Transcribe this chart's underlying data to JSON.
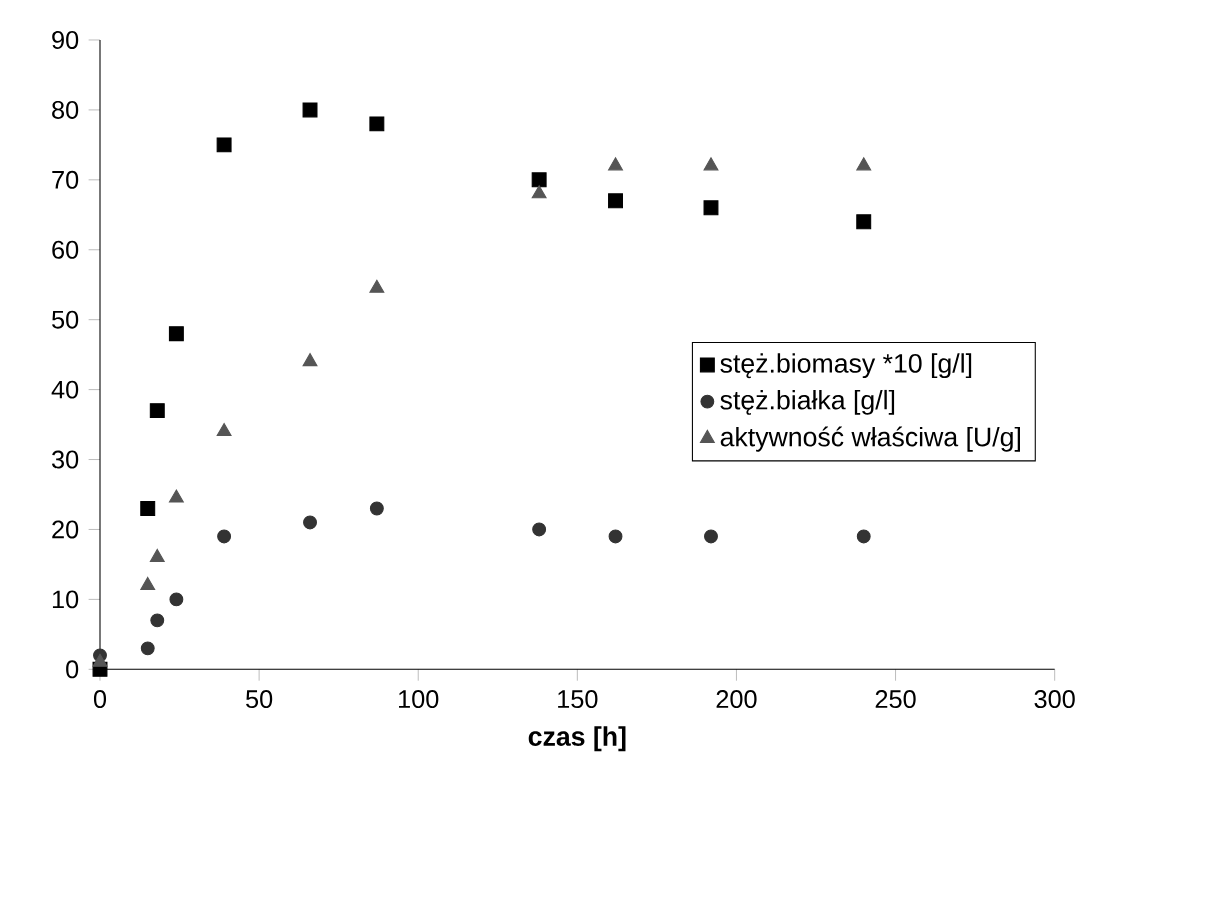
{
  "chart_data": {
    "type": "scatter",
    "xlabel": "czas [h]",
    "xlim": [
      0,
      300
    ],
    "xticks": [
      0,
      50,
      100,
      150,
      200,
      250,
      300
    ],
    "ylim": [
      0,
      90
    ],
    "yticks": [
      0,
      10,
      20,
      30,
      40,
      50,
      60,
      70,
      80,
      90
    ],
    "grid": false,
    "legend": "right",
    "series": [
      {
        "name": "stęż.biomasy *10 [g/l]",
        "color": "#000000",
        "marker": "square",
        "x": [
          0,
          15,
          18,
          24,
          39,
          66,
          87,
          138,
          162,
          192,
          240
        ],
        "values": [
          0,
          23,
          37,
          48,
          75,
          80,
          78,
          70,
          67,
          66,
          64
        ]
      },
      {
        "name": "stęż.białka [g/l]",
        "color": "#333333",
        "marker": "circle",
        "x": [
          0,
          15,
          18,
          24,
          39,
          66,
          87,
          138,
          162,
          192,
          240
        ],
        "values": [
          2,
          3,
          7,
          10,
          19,
          21,
          23,
          20,
          19,
          19,
          19
        ]
      },
      {
        "name": "aktywność właściwa [U/g]",
        "color": "#555555",
        "marker": "triangle",
        "x": [
          0,
          15,
          18,
          24,
          39,
          66,
          87,
          138,
          162,
          192,
          240
        ],
        "values": [
          1,
          12,
          16,
          24.5,
          34,
          44,
          54.5,
          68,
          72,
          72,
          72
        ]
      }
    ]
  }
}
